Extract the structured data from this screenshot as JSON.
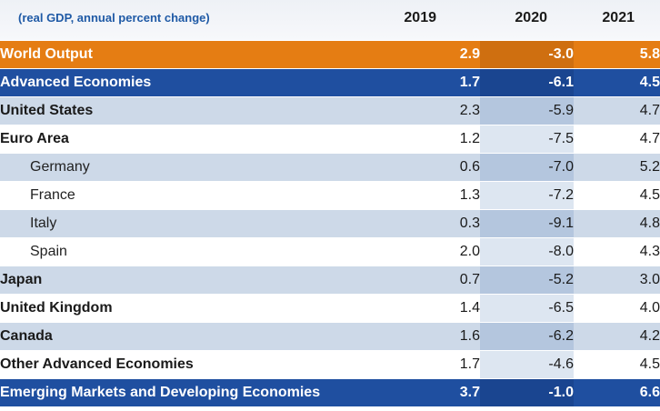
{
  "header": {
    "subtitle": "(real GDP, annual percent change)",
    "years": [
      "2019",
      "2020",
      "2021"
    ]
  },
  "colors": {
    "world_row": "#e57d13",
    "group_row": "#1f4fa0",
    "shaded_row": "#cdd9e8",
    "title_text": "#1f5aa6"
  },
  "chart_data": {
    "type": "table",
    "columns": [
      "2019",
      "2020",
      "2021"
    ],
    "rows": [
      {
        "name": "World Output",
        "values": [
          "2.9",
          "-3.0",
          "5.8"
        ],
        "kind": "world"
      },
      {
        "name": "Advanced Economies",
        "values": [
          "1.7",
          "-6.1",
          "4.5"
        ],
        "kind": "group"
      },
      {
        "name": "United States",
        "values": [
          "2.3",
          "-5.9",
          "4.7"
        ],
        "kind": "country"
      },
      {
        "name": "Euro Area",
        "values": [
          "1.2",
          "-7.5",
          "4.7"
        ],
        "kind": "country"
      },
      {
        "name": "Germany",
        "values": [
          "0.6",
          "-7.0",
          "5.2"
        ],
        "kind": "subcountry"
      },
      {
        "name": "France",
        "values": [
          "1.3",
          "-7.2",
          "4.5"
        ],
        "kind": "subcountry"
      },
      {
        "name": "Italy",
        "values": [
          "0.3",
          "-9.1",
          "4.8"
        ],
        "kind": "subcountry"
      },
      {
        "name": "Spain",
        "values": [
          "2.0",
          "-8.0",
          "4.3"
        ],
        "kind": "subcountry"
      },
      {
        "name": "Japan",
        "values": [
          "0.7",
          "-5.2",
          "3.0"
        ],
        "kind": "country"
      },
      {
        "name": "United Kingdom",
        "values": [
          "1.4",
          "-6.5",
          "4.0"
        ],
        "kind": "country"
      },
      {
        "name": "Canada",
        "values": [
          "1.6",
          "-6.2",
          "4.2"
        ],
        "kind": "country"
      },
      {
        "name": "Other Advanced Economies",
        "values": [
          "1.7",
          "-4.6",
          "4.5"
        ],
        "kind": "country"
      },
      {
        "name": "Emerging Markets and Developing Economies",
        "values": [
          "3.7",
          "-1.0",
          "6.6"
        ],
        "kind": "group"
      }
    ]
  }
}
